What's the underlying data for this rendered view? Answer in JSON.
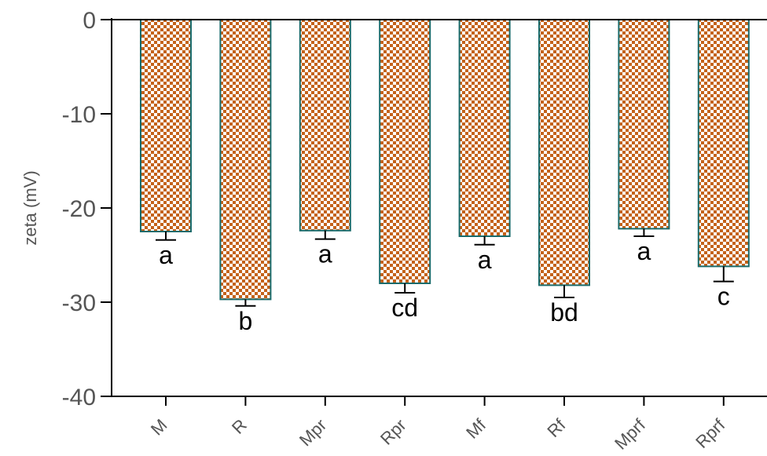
{
  "chart_data": {
    "type": "bar",
    "title": "",
    "xlabel": "",
    "ylabel": "zeta (mV)",
    "ylim": [
      -40,
      0
    ],
    "yticks": [
      0,
      -10,
      -20,
      -30,
      -40
    ],
    "categories": [
      "M",
      "R",
      "Mpr",
      "Rpr",
      "Mf",
      "Rf",
      "Mprf",
      "Rprf"
    ],
    "values": [
      -22.5,
      -29.7,
      -22.4,
      -28.0,
      -23.0,
      -28.2,
      -22.2,
      -26.2
    ],
    "errors": [
      0.9,
      0.7,
      0.9,
      1.0,
      0.9,
      1.3,
      0.8,
      1.6
    ],
    "significance_labels": [
      "a",
      "b",
      "a",
      "cd",
      "a",
      "bd",
      "a",
      "c"
    ],
    "grid": false,
    "legend": "none",
    "bar_style": {
      "fill_primary": "#c4621a",
      "fill_secondary": "#ffffff",
      "pattern": "checkerboard",
      "outline": "#1a6b6b"
    },
    "axis_color": "#000000"
  }
}
